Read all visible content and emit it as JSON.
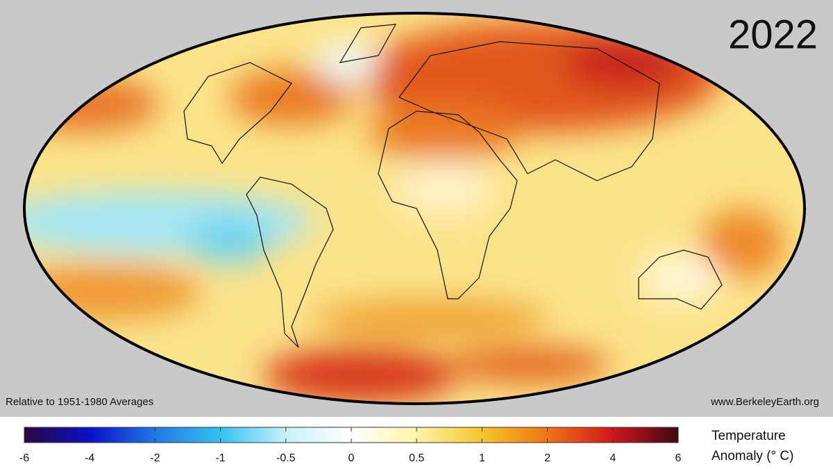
{
  "header": {
    "year": "2022"
  },
  "footer": {
    "note": "Relative to 1951-1980 Averages",
    "source": "www.BerkeleyEarth.org"
  },
  "colorbar": {
    "ticks": [
      -6,
      -4,
      -2,
      -1,
      -0.5,
      0,
      0.5,
      1,
      2,
      4,
      6
    ],
    "colors": [
      "#2a0840",
      "#0a10c8",
      "#1f78e6",
      "#35c2f0",
      "#c6f2fa",
      "#ffffff",
      "#fff3a8",
      "#f8c52a",
      "#f07414",
      "#d0161a",
      "#3e0814"
    ],
    "label": [
      "Temperature",
      "Anomaly (° C)"
    ]
  }
}
